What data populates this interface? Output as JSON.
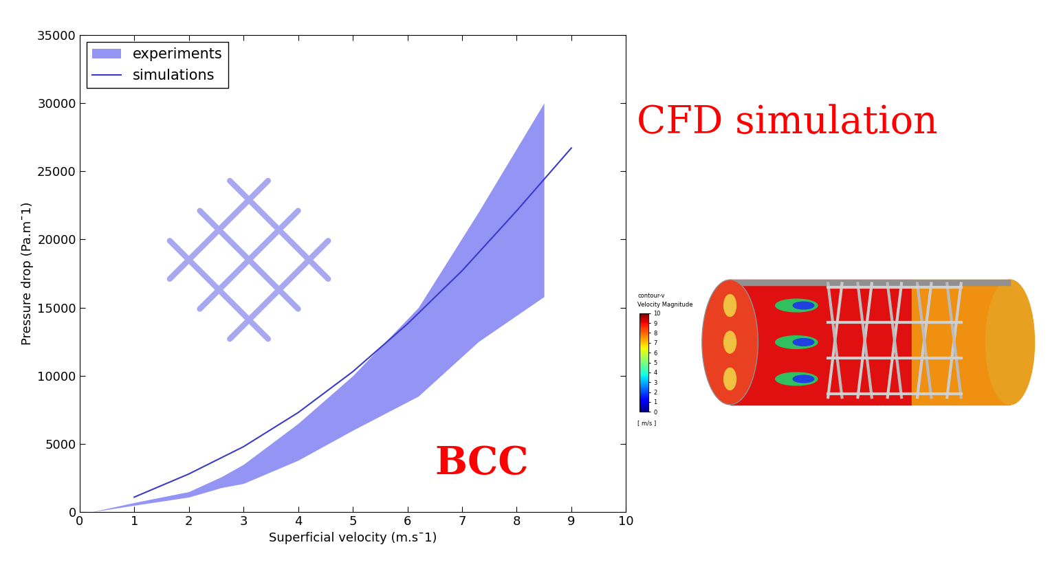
{
  "chart_data": {
    "type": "line",
    "x_label": "Superficial velocity (m.s¯1)",
    "y_label": "Pressure drop (Pa.m¯1)",
    "xlim": [
      0,
      10
    ],
    "xticks": [
      0,
      1,
      2,
      3,
      4,
      5,
      6,
      7,
      8,
      9,
      10
    ],
    "ylim": [
      0,
      35000
    ],
    "yticks": [
      0,
      5000,
      10000,
      15000,
      20000,
      25000,
      30000,
      35000
    ],
    "grid": false,
    "legend": "upper left",
    "series": [
      {
        "name": "experiments",
        "type": "area",
        "color": "#9494f5",
        "x": [
          0.2,
          1,
          2,
          2.6,
          3,
          4,
          5,
          6.2,
          7.3,
          8.5
        ],
        "lower": [
          0,
          500,
          1100,
          1800,
          2100,
          3800,
          6000,
          8500,
          12500,
          15800
        ],
        "upper": [
          0,
          700,
          1500,
          2600,
          3500,
          6500,
          10000,
          15000,
          22000,
          30000
        ]
      },
      {
        "name": "simulations",
        "type": "line",
        "color": "#3a3ac8",
        "line_style": "solid",
        "x": [
          1,
          2,
          3,
          4,
          5,
          6,
          7,
          8,
          9
        ],
        "values": [
          1100,
          2800,
          4800,
          7300,
          10300,
          13800,
          17700,
          22100,
          26700
        ]
      }
    ],
    "annotations": [
      "CFD simulation",
      "BCC"
    ],
    "colorbar": {
      "title": [
        "contour-v",
        "Velocity Magnitude"
      ],
      "unit": "[ m/s ]",
      "range": [
        0,
        10
      ],
      "ticks": [
        0,
        1,
        2,
        3,
        4,
        5,
        6,
        7,
        8,
        9,
        10
      ]
    }
  }
}
